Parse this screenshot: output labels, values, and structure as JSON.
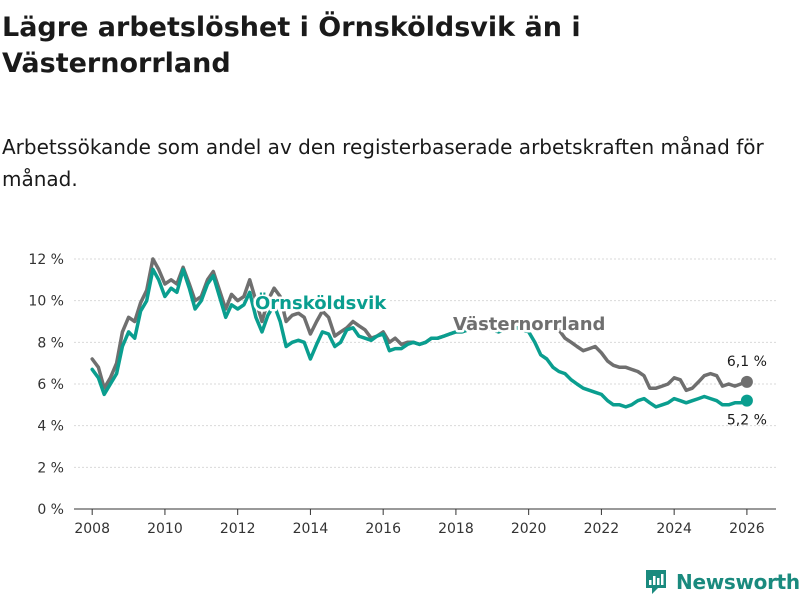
{
  "title": "Lägre arbetslöshet i Örnsköldsvik än i Västernorrland",
  "subtitle": "Arbetssökande som andel av den registerbaserade arbetskraften månad för månad.",
  "logo": {
    "text": "Newsworthy",
    "icon": "bar-chart-logo-icon"
  },
  "colors": {
    "primary": "#0a9e8f",
    "secondary": "#6f6f6f",
    "grid": "#d9d9d9",
    "axis": "#333333"
  },
  "chart_data": {
    "type": "line",
    "title": "Lägre arbetslöshet i Örnsköldsvik än i Västernorrland",
    "xlabel": "",
    "ylabel": "",
    "xlim": [
      2007.5,
      2026.8
    ],
    "ylim": [
      0,
      12
    ],
    "x_ticks": [
      "2008",
      "2010",
      "2012",
      "2014",
      "2016",
      "2018",
      "2020",
      "2022",
      "2024",
      "2026"
    ],
    "y_ticks": [
      "0 %",
      "2 %",
      "4 %",
      "6 %",
      "8 %",
      "10 %",
      "12 %"
    ],
    "grid": true,
    "series": [
      {
        "name": "Västernorrland",
        "color": "#6f6f6f",
        "end_label": "6,1 %",
        "x": [
          2008.0,
          2008.17,
          2008.33,
          2008.5,
          2008.67,
          2008.83,
          2009.0,
          2009.17,
          2009.33,
          2009.5,
          2009.67,
          2009.83,
          2010.0,
          2010.17,
          2010.33,
          2010.5,
          2010.67,
          2010.83,
          2011.0,
          2011.17,
          2011.33,
          2011.5,
          2011.67,
          2011.83,
          2012.0,
          2012.17,
          2012.33,
          2012.5,
          2012.67,
          2012.83,
          2013.0,
          2013.17,
          2013.33,
          2013.5,
          2013.67,
          2013.83,
          2014.0,
          2014.17,
          2014.33,
          2014.5,
          2014.67,
          2014.83,
          2015.0,
          2015.17,
          2015.33,
          2015.5,
          2015.67,
          2015.83,
          2016.0,
          2016.17,
          2016.33,
          2016.5,
          2016.67,
          2016.83,
          2017.0,
          2017.17,
          2017.33,
          2017.5,
          2017.67,
          2017.83,
          2018.0,
          2018.17,
          2018.33,
          2018.5,
          2018.67,
          2018.83,
          2019.0,
          2019.17,
          2019.33,
          2019.5,
          2019.67,
          2019.83,
          2020.0,
          2020.17,
          2020.33,
          2020.5,
          2020.67,
          2020.83,
          2021.0,
          2021.17,
          2021.33,
          2021.5,
          2021.67,
          2021.83,
          2022.0,
          2022.17,
          2022.33,
          2022.5,
          2022.67,
          2022.83,
          2023.0,
          2023.17,
          2023.33,
          2023.5,
          2023.67,
          2023.83,
          2024.0,
          2024.17,
          2024.33,
          2024.5,
          2024.67,
          2024.83,
          2025.0,
          2025.17,
          2025.33,
          2025.5,
          2025.67,
          2025.83,
          2026.0
        ],
        "values": [
          7.2,
          6.8,
          5.8,
          6.3,
          7.0,
          8.5,
          9.2,
          9.0,
          9.9,
          10.5,
          12.0,
          11.5,
          10.8,
          11.0,
          10.8,
          11.6,
          10.8,
          10.0,
          10.2,
          11.0,
          11.4,
          10.5,
          9.6,
          10.3,
          10.0,
          10.2,
          11.0,
          10.0,
          9.0,
          10.0,
          10.6,
          10.2,
          9.0,
          9.3,
          9.4,
          9.2,
          8.4,
          9.0,
          9.5,
          9.2,
          8.3,
          8.5,
          8.7,
          9.0,
          8.8,
          8.6,
          8.2,
          8.3,
          8.5,
          8.0,
          8.2,
          7.9,
          8.0,
          8.0,
          7.9,
          8.0,
          8.2,
          8.2,
          8.3,
          8.4,
          8.5,
          8.5,
          8.6,
          8.7,
          8.7,
          8.7,
          8.6,
          8.5,
          8.6,
          8.7,
          8.7,
          8.7,
          8.6,
          8.8,
          8.9,
          9.0,
          9.0,
          8.6,
          8.2,
          8.0,
          7.8,
          7.6,
          7.7,
          7.8,
          7.5,
          7.1,
          6.9,
          6.8,
          6.8,
          6.7,
          6.6,
          6.4,
          5.8,
          5.8,
          5.9,
          6.0,
          6.3,
          6.2,
          5.7,
          5.8,
          6.1,
          6.4,
          6.5,
          6.4,
          5.9,
          6.0,
          5.9,
          6.0,
          6.1
        ]
      },
      {
        "name": "Örnsköldsvik",
        "color": "#0a9e8f",
        "end_label": "5,2 %",
        "x": [
          2008.0,
          2008.17,
          2008.33,
          2008.5,
          2008.67,
          2008.83,
          2009.0,
          2009.17,
          2009.33,
          2009.5,
          2009.67,
          2009.83,
          2010.0,
          2010.17,
          2010.33,
          2010.5,
          2010.67,
          2010.83,
          2011.0,
          2011.17,
          2011.33,
          2011.5,
          2011.67,
          2011.83,
          2012.0,
          2012.17,
          2012.33,
          2012.5,
          2012.67,
          2012.83,
          2013.0,
          2013.17,
          2013.33,
          2013.5,
          2013.67,
          2013.83,
          2014.0,
          2014.17,
          2014.33,
          2014.5,
          2014.67,
          2014.83,
          2015.0,
          2015.17,
          2015.33,
          2015.5,
          2015.67,
          2015.83,
          2016.0,
          2016.17,
          2016.33,
          2016.5,
          2016.67,
          2016.83,
          2017.0,
          2017.17,
          2017.33,
          2017.5,
          2017.67,
          2017.83,
          2018.0,
          2018.17,
          2018.33,
          2018.5,
          2018.67,
          2018.83,
          2019.0,
          2019.17,
          2019.33,
          2019.5,
          2019.67,
          2019.83,
          2020.0,
          2020.17,
          2020.33,
          2020.5,
          2020.67,
          2020.83,
          2021.0,
          2021.17,
          2021.33,
          2021.5,
          2021.67,
          2021.83,
          2022.0,
          2022.17,
          2022.33,
          2022.5,
          2022.67,
          2022.83,
          2023.0,
          2023.17,
          2023.33,
          2023.5,
          2023.67,
          2023.83,
          2024.0,
          2024.17,
          2024.33,
          2024.5,
          2024.67,
          2024.83,
          2025.0,
          2025.17,
          2025.33,
          2025.5,
          2025.67,
          2025.83,
          2026.0
        ],
        "values": [
          6.7,
          6.3,
          5.5,
          6.0,
          6.5,
          7.8,
          8.5,
          8.2,
          9.5,
          10.0,
          11.5,
          11.0,
          10.2,
          10.6,
          10.4,
          11.5,
          10.6,
          9.6,
          10.0,
          10.8,
          11.2,
          10.2,
          9.2,
          9.8,
          9.6,
          9.8,
          10.4,
          9.2,
          8.5,
          9.3,
          9.8,
          9.0,
          7.8,
          8.0,
          8.1,
          8.0,
          7.2,
          7.9,
          8.5,
          8.4,
          7.8,
          8.0,
          8.6,
          8.7,
          8.3,
          8.2,
          8.1,
          8.3,
          8.4,
          7.6,
          7.7,
          7.7,
          7.9,
          8.0,
          7.9,
          8.0,
          8.2,
          8.2,
          8.3,
          8.4,
          8.5,
          8.5,
          8.6,
          8.7,
          8.7,
          8.7,
          8.6,
          8.5,
          8.6,
          8.7,
          8.7,
          8.6,
          8.5,
          8.0,
          7.4,
          7.2,
          6.8,
          6.6,
          6.5,
          6.2,
          6.0,
          5.8,
          5.7,
          5.6,
          5.5,
          5.2,
          5.0,
          5.0,
          4.9,
          5.0,
          5.2,
          5.3,
          5.1,
          4.9,
          5.0,
          5.1,
          5.3,
          5.2,
          5.1,
          5.2,
          5.3,
          5.4,
          5.3,
          5.2,
          5.0,
          5.0,
          5.1,
          5.1,
          5.2
        ]
      }
    ]
  }
}
